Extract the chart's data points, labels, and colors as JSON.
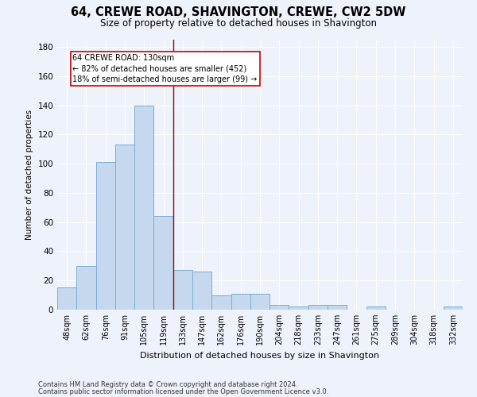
{
  "title": "64, CREWE ROAD, SHAVINGTON, CREWE, CW2 5DW",
  "subtitle": "Size of property relative to detached houses in Shavington",
  "xlabel": "Distribution of detached houses by size in Shavington",
  "ylabel": "Number of detached properties",
  "bar_color": "#c5d8ee",
  "bar_edge_color": "#7aadd4",
  "categories": [
    "48sqm",
    "62sqm",
    "76sqm",
    "91sqm",
    "105sqm",
    "119sqm",
    "133sqm",
    "147sqm",
    "162sqm",
    "176sqm",
    "190sqm",
    "204sqm",
    "218sqm",
    "233sqm",
    "247sqm",
    "261sqm",
    "275sqm",
    "289sqm",
    "304sqm",
    "318sqm",
    "332sqm"
  ],
  "values": [
    15,
    30,
    101,
    113,
    140,
    64,
    27,
    26,
    10,
    11,
    11,
    3,
    2,
    3,
    3,
    0,
    2,
    0,
    0,
    0,
    2
  ],
  "ylim": [
    0,
    185
  ],
  "yticks": [
    0,
    20,
    40,
    60,
    80,
    100,
    120,
    140,
    160,
    180
  ],
  "property_line_x": 5.5,
  "annotation_text": "64 CREWE ROAD: 130sqm\n← 82% of detached houses are smaller (452)\n18% of semi-detached houses are larger (99) →",
  "annotation_box_color": "#ffffff",
  "annotation_box_edge_color": "#cc0000",
  "vline_color": "#990000",
  "footer1": "Contains HM Land Registry data © Crown copyright and database right 2024.",
  "footer2": "Contains public sector information licensed under the Open Government Licence v3.0.",
  "background_color": "#eef2fb",
  "grid_color": "#ffffff"
}
